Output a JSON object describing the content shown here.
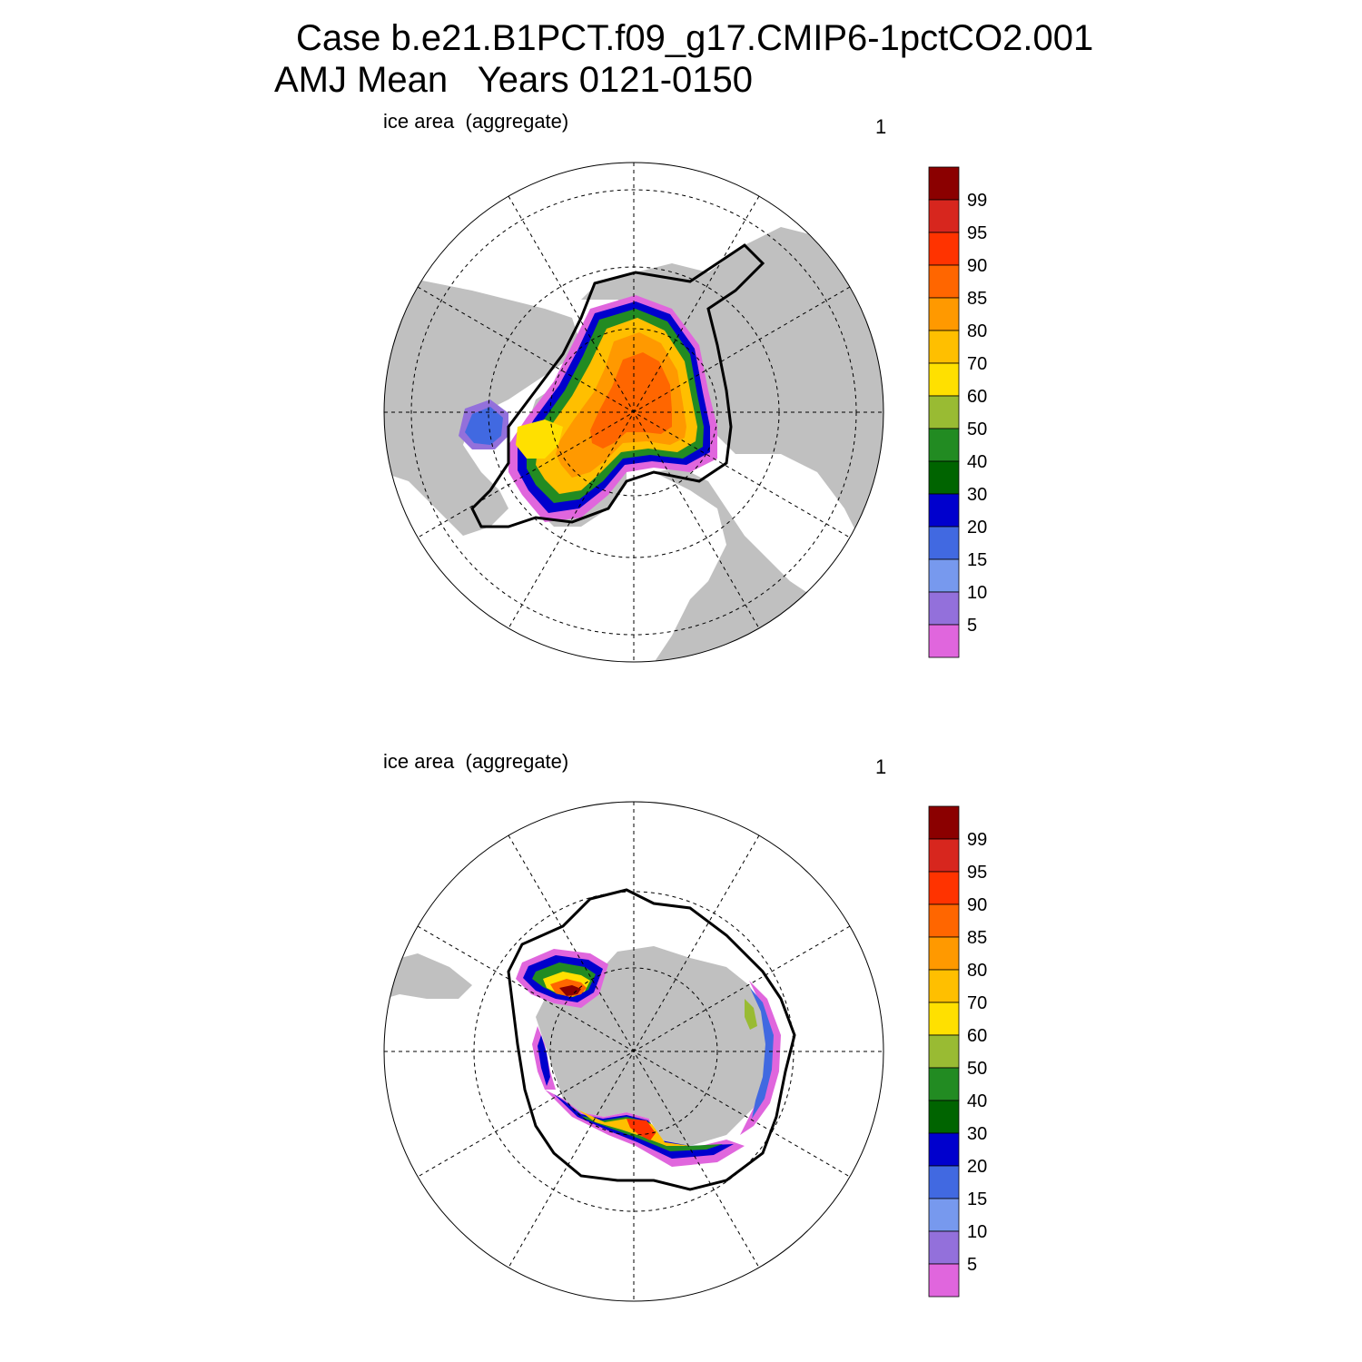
{
  "title": {
    "line1": "Case b.e21.B1PCT.f09_g17.CMIP6-1pctCO2.001",
    "line2": "AMJ Mean   Years 0121-0150"
  },
  "panels": [
    {
      "id": "north",
      "label": "ice area  (aggregate)",
      "number": "1"
    },
    {
      "id": "south",
      "label": "ice area  (aggregate)",
      "number": "1"
    }
  ],
  "colorbar": {
    "labels": [
      "99",
      "95",
      "90",
      "85",
      "80",
      "70",
      "60",
      "50",
      "40",
      "30",
      "20",
      "15",
      "10",
      "5"
    ],
    "colors_top_to_bottom": [
      "#8b0000",
      "#d7261e",
      "#ff3300",
      "#ff6600",
      "#ff9900",
      "#ffbf00",
      "#ffe000",
      "#99bb33",
      "#228b22",
      "#006400",
      "#0000cd",
      "#4169e1",
      "#7799ee",
      "#9370db",
      "#e066dd"
    ]
  },
  "colors": {
    "land": "#c0c0c0",
    "ocean": "#ffffff",
    "ice_edge": "#000000"
  }
}
